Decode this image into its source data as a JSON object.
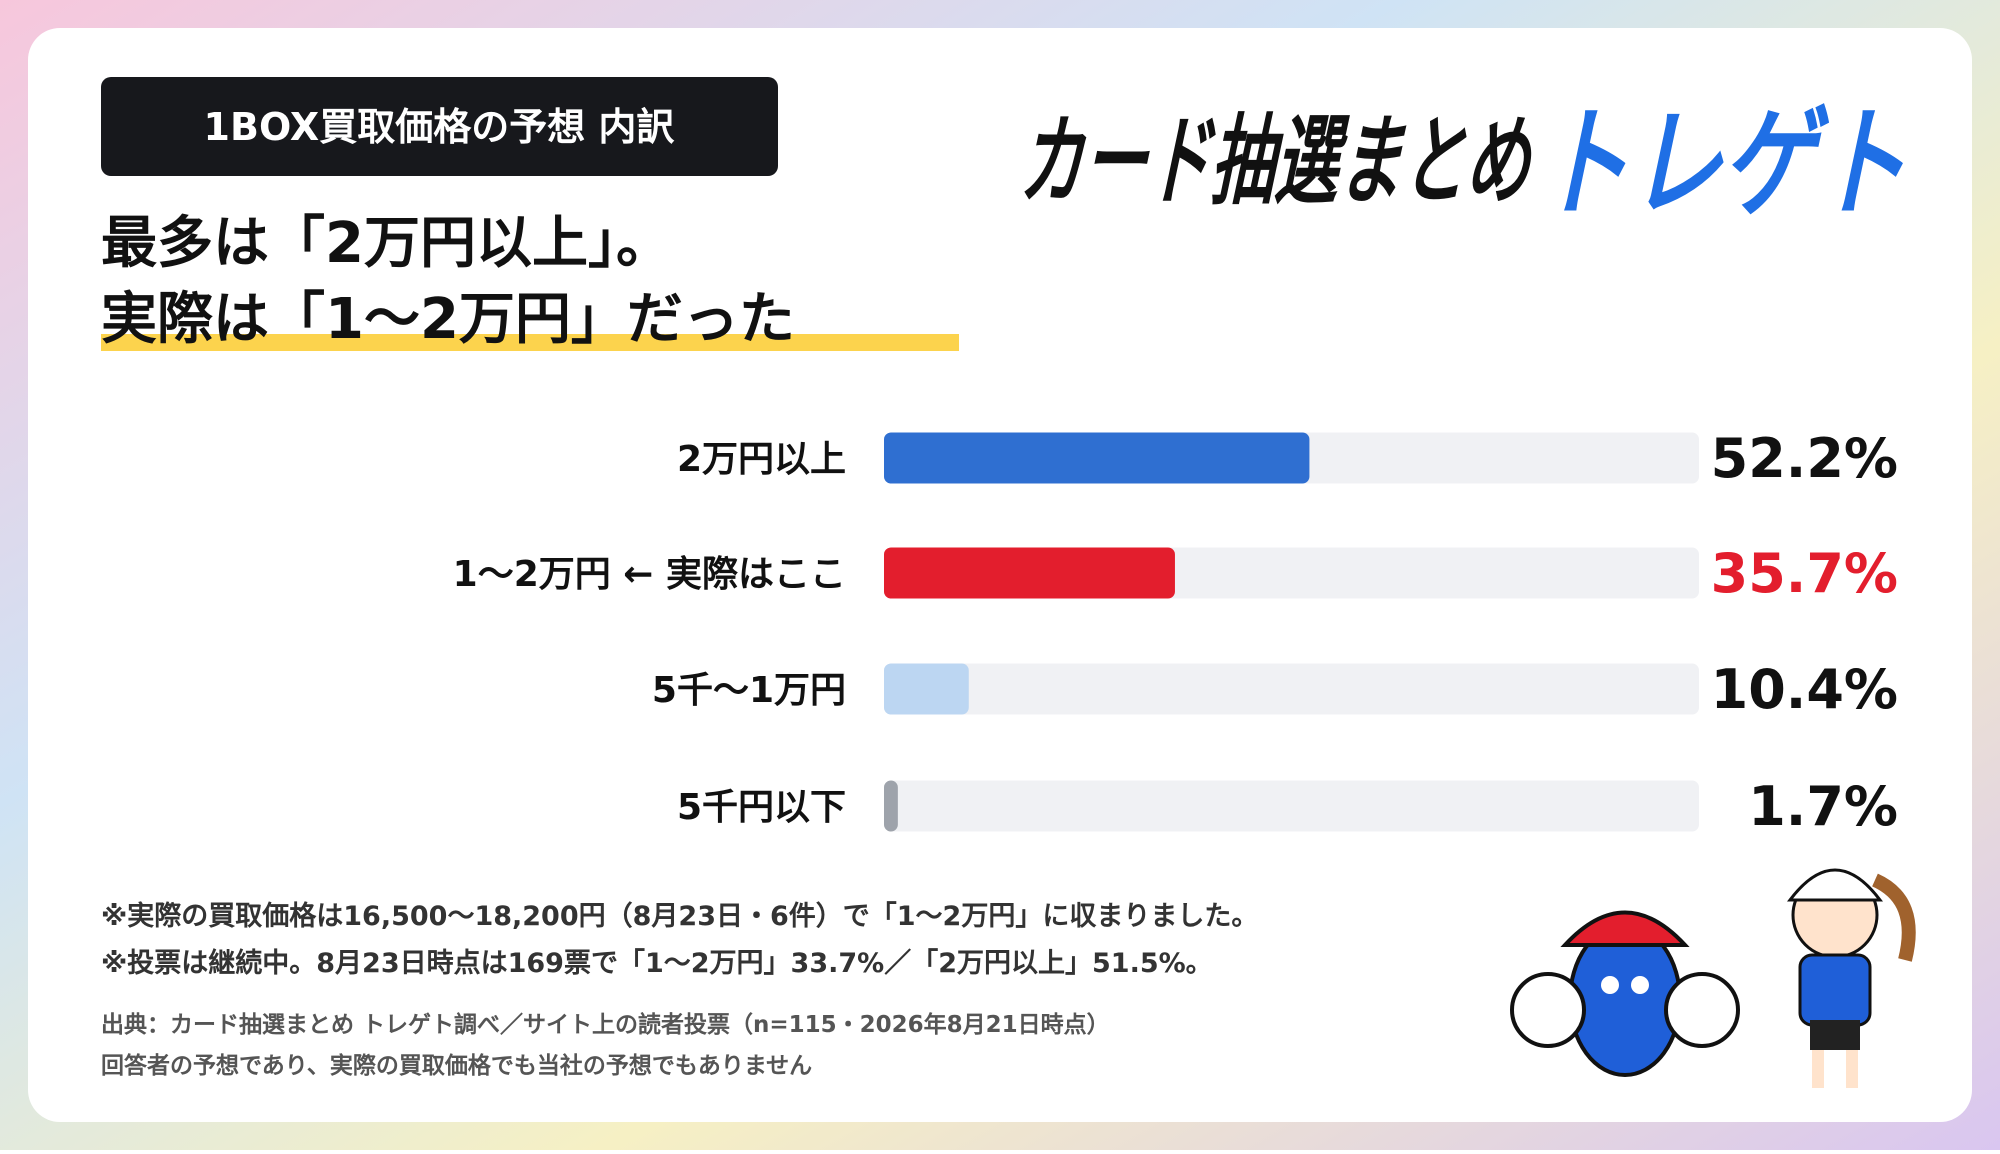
{
  "chart_data": {
    "type": "hbar",
    "title": "1BOX買取価格の予想 内訳",
    "subtitle": [
      "最多は「2万円以上」。",
      "実際は「1〜2万円」だった"
    ],
    "categories": [
      "2万円以上",
      "1〜2万円 ← 実際はここ",
      "5千〜1万円",
      "5千円以下"
    ],
    "values": [
      52.2,
      35.7,
      10.4,
      1.7
    ],
    "value_labels": [
      "52.2%",
      "35.7%",
      "10.4%",
      "1.7%"
    ],
    "colors": [
      "#2f6fd1",
      "#e31e2d",
      "#bcd6f2",
      "#9ea3ab"
    ],
    "value_label_colors": [
      "#111111",
      "#e31e2d",
      "#111111",
      "#111111"
    ],
    "xlim": [
      0,
      100
    ],
    "notes": [
      "※実際の買取価格は16,500〜18,200円（8月23日・6件）で「1〜2万円」に収まりました。",
      "※投票は継続中。8月23日時点は169票で「1〜2万円」33.7%／「2万円以上」51.5%。"
    ],
    "source": [
      "出典：カード抽選まとめ トレゲト調べ／サイト上の読者投票（n=115・2026年8月21日時点）",
      "回答者の予想であり、実際の買取価格でも当社の予想でもありません"
    ]
  },
  "logo": {
    "main": "カード抽選まとめ",
    "accent": "トレゲト"
  }
}
